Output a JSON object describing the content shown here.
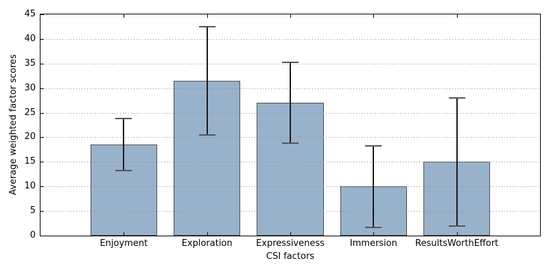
{
  "chart_data": {
    "type": "bar",
    "xlabel": "CSI factors",
    "ylabel": "Average weighted factor scores",
    "categories": [
      "Enjoyment",
      "Exploration",
      "Expressiveness",
      "Immersion",
      "ResultsWorthEffort"
    ],
    "values": [
      18.5,
      31.5,
      27.0,
      10.0,
      15.0
    ],
    "errors": [
      5.3,
      11.0,
      8.2,
      8.3,
      13.0
    ],
    "error_ranges": [
      [
        13.2,
        23.8
      ],
      [
        20.5,
        42.5
      ],
      [
        18.8,
        35.2
      ],
      [
        1.7,
        18.3
      ],
      [
        2.0,
        28.0
      ]
    ],
    "ylim": [
      0,
      45
    ],
    "yticks": [
      0,
      5,
      10,
      15,
      20,
      25,
      30,
      35,
      40,
      45
    ],
    "gridlines_at": [
      5,
      10,
      15,
      20,
      25,
      30,
      35,
      40
    ],
    "grid_style": "dotted-horizontal",
    "grid_above_bars": true,
    "bar_width_fraction": 0.8,
    "colors": {
      "bar_fill": "#99B2CC",
      "bar_edge": "#4D4D4D",
      "error_line": "#1a1a1a",
      "error_cap": "#555555",
      "grid": "#8a8a8a",
      "axis": "#000000",
      "text": "#000000",
      "background": "#ffffff"
    }
  }
}
